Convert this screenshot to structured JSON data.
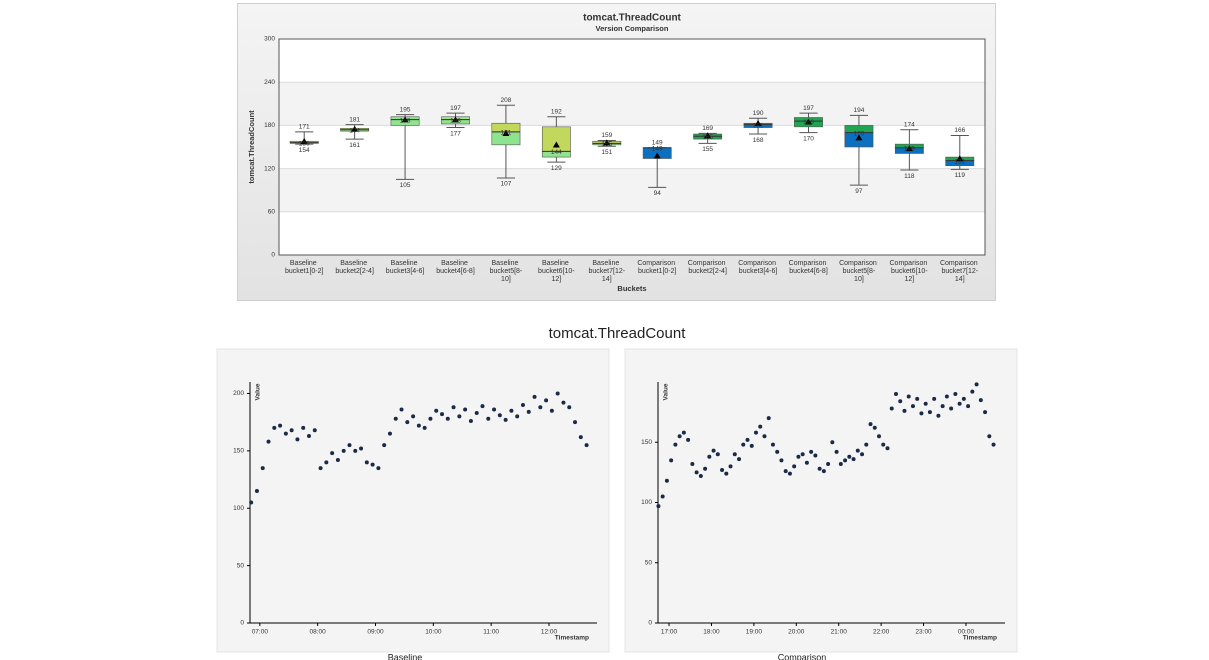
{
  "chart_data": [
    {
      "type": "box",
      "title": "tomcat.ThreadCount",
      "subtitle": "Version Comparison",
      "x_label": "Buckets",
      "y_label": "tomcat.ThreadCount",
      "categories": [
        "Baseline bucket1[0-2]",
        "Baseline bucket2[2-4]",
        "Baseline bucket3[4-6]",
        "Baseline bucket4[6-8]",
        "Baseline bucket5[8-10]",
        "Baseline bucket6[10-12]",
        "Baseline bucket7[12-14]",
        "Comparison bucket1[0-2]",
        "Comparison bucket2[2-4]",
        "Comparison bucket3[4-6]",
        "Comparison bucket4[6-8]",
        "Comparison bucket5[8-10]",
        "Comparison bucket6[10-12]",
        "Comparison bucket7[12-14]"
      ],
      "boxes": [
        {
          "min": 154,
          "q1": 155,
          "median": 156,
          "q3": 158,
          "max": 171,
          "mean": 157,
          "colors": [
            "#8fe38f",
            "#c2d85c"
          ]
        },
        {
          "min": 161,
          "q1": 172,
          "median": 174,
          "q3": 176,
          "max": 181,
          "mean": 174,
          "colors": [
            "#8fe38f",
            "#c2d85c"
          ]
        },
        {
          "min": 105,
          "q1": 180,
          "median": 188,
          "q3": 192,
          "max": 195,
          "mean": 187,
          "colors": [
            "#8fe38f",
            "#8fe38f"
          ]
        },
        {
          "min": 177,
          "q1": 182,
          "median": 188,
          "q3": 192,
          "max": 197,
          "mean": 187,
          "colors": [
            "#8fe38f",
            "#a8e38a"
          ]
        },
        {
          "min": 107,
          "q1": 153,
          "median": 171,
          "q3": 183,
          "max": 208,
          "mean": 168,
          "colors": [
            "#8fe38f",
            "#c2d85c"
          ]
        },
        {
          "min": 129,
          "q1": 136,
          "median": 144,
          "q3": 178,
          "max": 192,
          "mean": 152,
          "colors": [
            "#8fe38f",
            "#c2d85c"
          ]
        },
        {
          "min": 151,
          "q1": 153,
          "median": 155,
          "q3": 158,
          "max": 159,
          "mean": 155,
          "colors": [
            "#8fe38f",
            "#c2d85c"
          ]
        },
        {
          "min": 94,
          "q1": 134,
          "median": 149,
          "q3": 149,
          "max": 149,
          "mean": 137,
          "colors": [
            "#0b70bf",
            "#22a553"
          ]
        },
        {
          "min": 155,
          "q1": 161,
          "median": 165,
          "q3": 168,
          "max": 169,
          "mean": 165,
          "colors": [
            "#22a553",
            "#22a553"
          ]
        },
        {
          "min": 168,
          "q1": 177,
          "median": 181,
          "q3": 183,
          "max": 190,
          "mean": 182,
          "colors": [
            "#0b70bf",
            "#22a553"
          ]
        },
        {
          "min": 170,
          "q1": 178,
          "median": 186,
          "q3": 191,
          "max": 197,
          "mean": 184,
          "colors": [
            "#22a553",
            "#22a553"
          ]
        },
        {
          "min": 97,
          "q1": 150,
          "median": 170,
          "q3": 180,
          "max": 194,
          "mean": 162,
          "colors": [
            "#0b70bf",
            "#22a553"
          ]
        },
        {
          "min": 118,
          "q1": 141,
          "median": 149,
          "q3": 154,
          "max": 174,
          "mean": 147,
          "colors": [
            "#0b70bf",
            "#22a553"
          ]
        },
        {
          "min": 119,
          "q1": 124,
          "median": 131,
          "q3": 136,
          "max": 166,
          "mean": 133,
          "colors": [
            "#0b70bf",
            "#22a553"
          ]
        }
      ],
      "ylim": [
        0,
        300
      ],
      "yticks": [
        0,
        60,
        120,
        180,
        240,
        300
      ],
      "grid": true
    },
    {
      "type": "scatter",
      "title": "Baseline",
      "x_label": "Timestamp",
      "y_label": "Value",
      "color": "#1b2a47",
      "x": [
        6.85,
        6.95,
        7.05,
        7.15,
        7.25,
        7.35,
        7.45,
        7.55,
        7.65,
        7.75,
        7.85,
        7.95,
        8.05,
        8.15,
        8.25,
        8.35,
        8.45,
        8.55,
        8.65,
        8.75,
        8.85,
        8.95,
        9.05,
        9.15,
        9.25,
        9.35,
        9.45,
        9.55,
        9.65,
        9.75,
        9.85,
        9.95,
        10.05,
        10.15,
        10.25,
        10.35,
        10.45,
        10.55,
        10.65,
        10.75,
        10.85,
        10.95,
        11.05,
        11.15,
        11.25,
        11.35,
        11.45,
        11.55,
        11.65,
        11.75,
        11.85,
        11.95,
        12.05,
        12.15,
        12.25,
        12.35,
        12.45,
        12.55,
        12.65
      ],
      "values": [
        105,
        115,
        135,
        158,
        170,
        172,
        165,
        168,
        160,
        170,
        163,
        168,
        135,
        140,
        148,
        142,
        150,
        155,
        150,
        152,
        140,
        138,
        135,
        155,
        165,
        178,
        186,
        175,
        180,
        172,
        170,
        178,
        185,
        182,
        178,
        188,
        180,
        186,
        176,
        183,
        189,
        178,
        186,
        181,
        177,
        185,
        180,
        190,
        184,
        197,
        188,
        194,
        185,
        200,
        192,
        188,
        175,
        162,
        155
      ],
      "xlim": [
        6.83,
        12.83
      ],
      "ylim": [
        0,
        210
      ],
      "xticks": [
        {
          "value": 7,
          "label": "07:00"
        },
        {
          "value": 8,
          "label": "08:00"
        },
        {
          "value": 9,
          "label": "09:00"
        },
        {
          "value": 10,
          "label": "10:00"
        },
        {
          "value": 11,
          "label": "11:00"
        },
        {
          "value": 12,
          "label": "12:00"
        }
      ],
      "yticks": [
        0,
        50,
        100,
        150,
        200
      ]
    },
    {
      "type": "scatter",
      "title": "Comparison",
      "x_label": "Timestamp",
      "y_label": "Value",
      "color": "#1b2a47",
      "x": [
        16.75,
        16.85,
        16.95,
        17.05,
        17.15,
        17.25,
        17.35,
        17.45,
        17.55,
        17.65,
        17.75,
        17.85,
        17.95,
        18.05,
        18.15,
        18.25,
        18.35,
        18.45,
        18.55,
        18.65,
        18.75,
        18.85,
        18.95,
        19.05,
        19.15,
        19.25,
        19.35,
        19.45,
        19.55,
        19.65,
        19.75,
        19.85,
        19.95,
        20.05,
        20.15,
        20.25,
        20.35,
        20.45,
        20.55,
        20.65,
        20.75,
        20.85,
        20.95,
        21.05,
        21.15,
        21.25,
        21.35,
        21.45,
        21.55,
        21.65,
        21.75,
        21.85,
        21.95,
        22.05,
        22.15,
        22.25,
        22.35,
        22.45,
        22.55,
        22.65,
        22.75,
        22.85,
        22.95,
        23.05,
        23.15,
        23.25,
        23.35,
        23.45,
        23.55,
        23.65,
        23.75,
        23.85,
        23.95,
        24.05,
        24.15,
        24.25,
        24.35,
        24.45,
        24.55,
        24.65
      ],
      "values": [
        97,
        105,
        118,
        135,
        148,
        155,
        158,
        152,
        132,
        125,
        122,
        128,
        138,
        143,
        140,
        127,
        124,
        130,
        140,
        136,
        148,
        152,
        147,
        158,
        163,
        155,
        170,
        148,
        142,
        135,
        126,
        124,
        130,
        138,
        140,
        133,
        142,
        139,
        128,
        126,
        132,
        150,
        142,
        132,
        135,
        138,
        136,
        143,
        140,
        148,
        165,
        162,
        155,
        148,
        145,
        178,
        190,
        184,
        176,
        188,
        180,
        186,
        174,
        182,
        175,
        186,
        172,
        180,
        188,
        178,
        190,
        182,
        186,
        180,
        192,
        198,
        185,
        175,
        155,
        148
      ],
      "xlim": [
        16.74,
        24.92
      ],
      "ylim": [
        0,
        200
      ],
      "xticks": [
        {
          "value": 17,
          "label": "17:00"
        },
        {
          "value": 18,
          "label": "18:00"
        },
        {
          "value": 19,
          "label": "19:00"
        },
        {
          "value": 20,
          "label": "20:00"
        },
        {
          "value": 21,
          "label": "21:00"
        },
        {
          "value": 22,
          "label": "22:00"
        },
        {
          "value": 23,
          "label": "23:00"
        },
        {
          "value": 24,
          "label": "00:00"
        }
      ],
      "yticks": [
        0,
        50,
        100,
        150
      ]
    }
  ],
  "section_title": "tomcat.ThreadCount"
}
